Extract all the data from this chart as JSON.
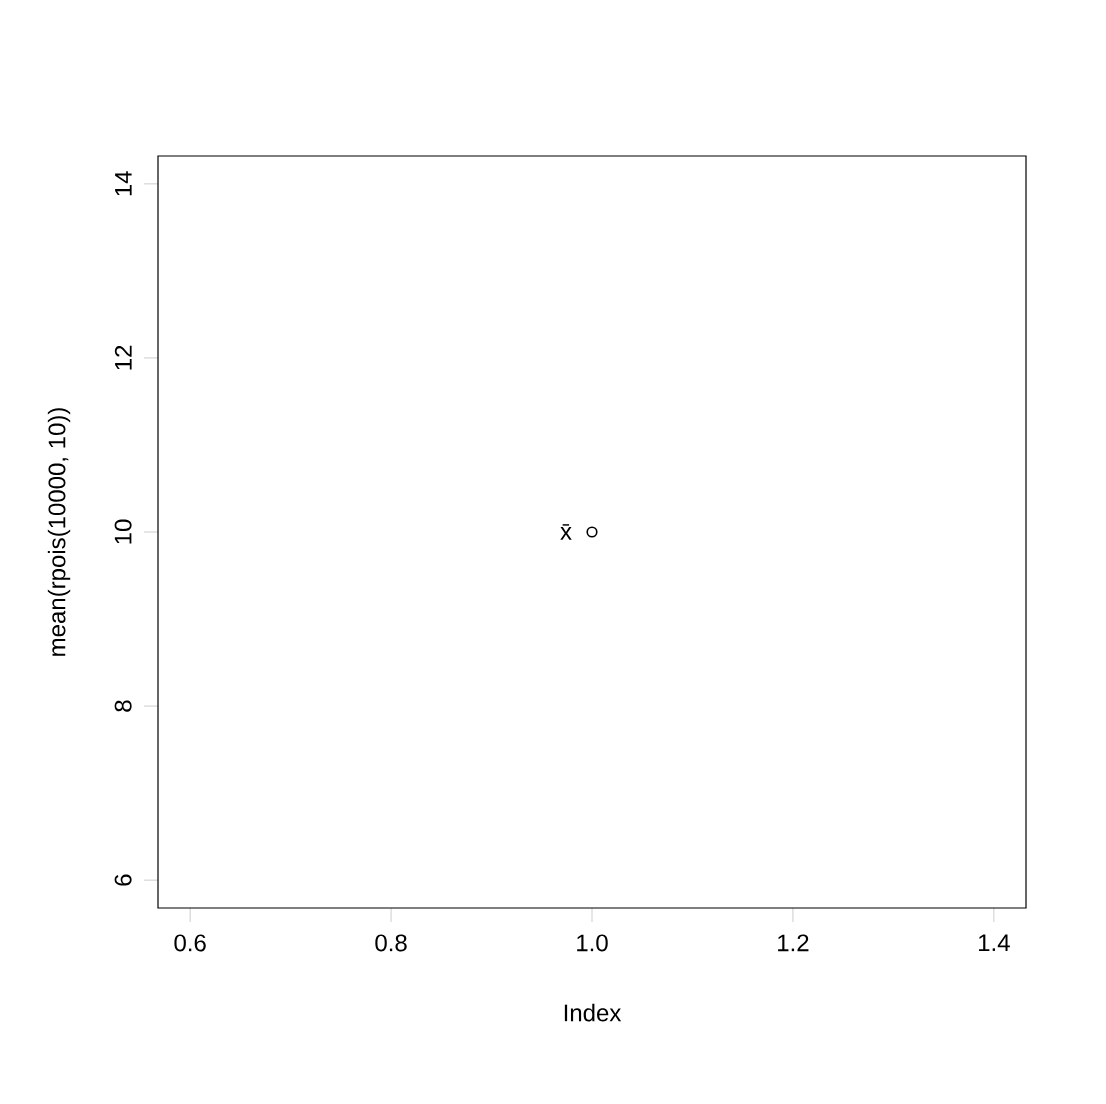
{
  "chart_data": {
    "type": "scatter",
    "xlabel": "Index",
    "ylabel": "mean(rpois(10000, 10))",
    "x": [
      1
    ],
    "values": [
      10
    ],
    "color": "#000000",
    "marker": "circle",
    "xlim": [
      0.568,
      1.432
    ],
    "ylim": [
      5.68,
      14.32
    ],
    "xticks": [
      0.6,
      0.8,
      {
        "value": 1,
        "label": "1.0"
      },
      1.2,
      1.4
    ],
    "yticks": [
      6,
      8,
      10,
      12,
      14
    ],
    "annotations": [
      "x̄"
    ]
  }
}
